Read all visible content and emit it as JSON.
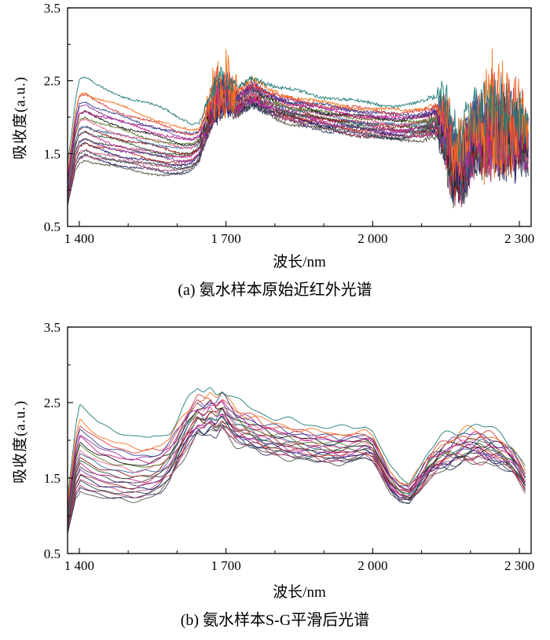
{
  "figure": {
    "background": "#ffffff"
  },
  "chart_data": [
    {
      "id": "a",
      "type": "line",
      "caption": "(a) 氨水样本原始近红外光谱",
      "xlabel": "波长/nm",
      "ylabel": "吸收度(a.u.)",
      "xlim": [
        1376,
        2324
      ],
      "ylim": [
        0.5,
        3.5
      ],
      "x_end": 2318,
      "grid": false,
      "legend": "none",
      "xticks": [
        {
          "v": 1400,
          "label": "1 400"
        },
        {
          "v": 1700,
          "label": "1 700"
        },
        {
          "v": 2000,
          "label": "2 000"
        },
        {
          "v": 2300,
          "label": "2 300"
        }
      ],
      "xminor": [
        1500,
        1600,
        1800,
        1900,
        2100,
        2200
      ],
      "yticks": [
        {
          "v": 0.5,
          "label": "0.5"
        },
        {
          "v": 1.5,
          "label": "1.5"
        },
        {
          "v": 2.5,
          "label": "2.5"
        },
        {
          "v": 3.5,
          "label": "3.5"
        }
      ],
      "yminor": [
        1.0,
        2.0,
        3.0
      ],
      "base": {
        "x": [
          1376,
          1385,
          1392,
          1400,
          1412,
          1430,
          1460,
          1500,
          1540,
          1580,
          1610,
          1630,
          1645,
          1658,
          1668,
          1678,
          1690,
          1700,
          1712,
          1725,
          1738,
          1752,
          1766,
          1780,
          1800,
          1830,
          1860,
          1900,
          1940,
          1980,
          2020,
          2060,
          2100,
          2130,
          2145,
          2155,
          2165,
          2180,
          2195,
          2210,
          2230,
          2250,
          2270,
          2290,
          2305,
          2318
        ],
        "y": [
          1.0,
          1.35,
          1.65,
          1.82,
          1.86,
          1.8,
          1.74,
          1.67,
          1.61,
          1.55,
          1.52,
          1.53,
          1.6,
          1.85,
          2.05,
          2.18,
          2.28,
          2.3,
          2.22,
          2.18,
          2.25,
          2.32,
          2.28,
          2.22,
          2.16,
          2.1,
          2.06,
          2.0,
          1.96,
          1.92,
          1.89,
          1.87,
          1.9,
          1.95,
          1.9,
          1.6,
          1.35,
          1.3,
          1.55,
          1.75,
          1.72,
          1.78,
          1.8,
          1.76,
          1.7,
          1.6
        ]
      },
      "envelope": {
        "x": [
          1376,
          1400,
          1450,
          1520,
          1580,
          1620,
          1650,
          1680,
          1710,
          1760,
          1820,
          1900,
          2000,
          2080,
          2130,
          2160,
          2200,
          2250,
          2318
        ],
        "y": [
          0.5,
          1.0,
          0.92,
          0.82,
          0.75,
          0.62,
          0.45,
          0.38,
          0.34,
          0.35,
          0.36,
          0.4,
          0.42,
          0.42,
          0.44,
          0.5,
          0.52,
          0.5,
          0.45
        ]
      },
      "noise_amp": {
        "x": [
          1376,
          1640,
          1658,
          1670,
          1685,
          1700,
          1715,
          1730,
          1745,
          1765,
          1790,
          1850,
          2000,
          2100,
          2128,
          2140,
          2155,
          2175,
          2200,
          2230,
          2260,
          2290,
          2318
        ],
        "y": [
          0.012,
          0.015,
          0.04,
          0.1,
          0.16,
          0.14,
          0.09,
          0.05,
          0.055,
          0.05,
          0.03,
          0.022,
          0.02,
          0.022,
          0.05,
          0.25,
          0.45,
          0.42,
          0.38,
          0.42,
          0.45,
          0.4,
          0.3
        ]
      },
      "series": [
        {
          "color": "#1f7a78",
          "offset": 0.7,
          "spike": 1.2
        },
        {
          "color": "#f5731d",
          "offset": 0.5,
          "spike": 3.5
        },
        {
          "color": "#d94040",
          "offset": 0.43,
          "spike": 2.2
        },
        {
          "color": "#33418f",
          "offset": 0.37,
          "spike": 1.4
        },
        {
          "color": "#8b3a9e",
          "offset": 0.31,
          "spike": 1.0
        },
        {
          "color": "#c71585",
          "offset": 0.26,
          "spike": 1.6
        },
        {
          "color": "#1a1a1a",
          "offset": 0.2,
          "spike": 1.0
        },
        {
          "color": "#5c7d2e",
          "offset": 0.15,
          "spike": 1.0
        },
        {
          "color": "#e8638c",
          "offset": 0.1,
          "spike": 1.2
        },
        {
          "color": "#3a6ea5",
          "offset": 0.05,
          "spike": 1.0
        },
        {
          "color": "#8b1a1a",
          "offset": 0.0,
          "spike": 1.5
        },
        {
          "color": "#2e5d34",
          "offset": -0.05,
          "spike": 1.0
        },
        {
          "color": "#d02090",
          "offset": -0.09,
          "spike": 1.0
        },
        {
          "color": "#474747",
          "offset": -0.13,
          "spike": 1.0
        },
        {
          "color": "#7a3bb5",
          "offset": -0.17,
          "spike": 1.3
        },
        {
          "color": "#c0392b",
          "offset": -0.21,
          "spike": 1.0
        },
        {
          "color": "#1b1b66",
          "offset": -0.25,
          "spike": 1.8
        },
        {
          "color": "#c2527a",
          "offset": -0.29,
          "spike": 1.0
        },
        {
          "color": "#2f4f4f",
          "offset": -0.33,
          "spike": 1.0
        },
        {
          "color": "#9b3b66",
          "offset": -0.37,
          "spike": 1.0
        },
        {
          "color": "#343468",
          "offset": -0.41,
          "spike": 1.2
        },
        {
          "color": "#555544",
          "offset": -0.45,
          "spike": 1.0
        }
      ]
    },
    {
      "id": "b",
      "type": "line",
      "caption": "(b) 氨水样本S-G平滑后光谱",
      "xlabel": "波长/nm",
      "ylabel": "吸收度(a.u.)",
      "xlim": [
        1376,
        2324
      ],
      "ylim": [
        0.5,
        3.5
      ],
      "x_end": 2312,
      "grid": false,
      "legend": "none",
      "xticks": [
        {
          "v": 1400,
          "label": "1 400"
        },
        {
          "v": 1700,
          "label": "1 700"
        },
        {
          "v": 2000,
          "label": "2 000"
        },
        {
          "v": 2300,
          "label": "2 300"
        }
      ],
      "xminor": [
        1500,
        1600,
        1800,
        1900,
        2100,
        2200
      ],
      "yticks": [
        {
          "v": 0.5,
          "label": "0.5"
        },
        {
          "v": 1.5,
          "label": "1.5"
        },
        {
          "v": 2.5,
          "label": "2.5"
        },
        {
          "v": 3.5,
          "label": "3.5"
        }
      ],
      "yminor": [
        1.0,
        2.0,
        3.0
      ],
      "base": {
        "x": [
          1376,
          1385,
          1393,
          1402,
          1415,
          1440,
          1470,
          1510,
          1545,
          1565,
          1585,
          1605,
          1625,
          1642,
          1655,
          1668,
          1680,
          1692,
          1705,
          1720,
          1738,
          1755,
          1775,
          1800,
          1830,
          1860,
          1895,
          1930,
          1960,
          1985,
          2000,
          2015,
          2035,
          2055,
          2075,
          2095,
          2115,
          2140,
          2165,
          2190,
          2215,
          2240,
          2265,
          2285,
          2300,
          2312
        ],
        "y": [
          0.95,
          1.3,
          1.62,
          1.78,
          1.72,
          1.63,
          1.58,
          1.53,
          1.55,
          1.6,
          1.72,
          1.95,
          2.18,
          2.32,
          2.28,
          2.35,
          2.3,
          2.38,
          2.28,
          2.18,
          2.14,
          2.1,
          2.04,
          2.0,
          1.96,
          1.93,
          1.9,
          1.88,
          1.9,
          1.93,
          1.88,
          1.7,
          1.45,
          1.32,
          1.28,
          1.45,
          1.65,
          1.78,
          1.85,
          1.9,
          1.92,
          1.88,
          1.82,
          1.72,
          1.58,
          1.45
        ]
      },
      "envelope": {
        "x": [
          1376,
          1400,
          1440,
          1500,
          1550,
          1600,
          1650,
          1700,
          1760,
          1850,
          1950,
          2000,
          2040,
          2080,
          2120,
          2180,
          2240,
          2312
        ],
        "y": [
          0.45,
          1.0,
          0.85,
          0.75,
          0.68,
          0.55,
          0.5,
          0.48,
          0.45,
          0.42,
          0.4,
          0.35,
          0.28,
          0.25,
          0.3,
          0.4,
          0.38,
          0.28
        ]
      },
      "wiggle_amp": {
        "x": [
          1376,
          1500,
          1560,
          1610,
          1660,
          1720,
          1780,
          1850,
          1930,
          1990,
          2040,
          2100,
          2160,
          2220,
          2280,
          2312
        ],
        "y": [
          0.2,
          0.35,
          0.5,
          0.9,
          1.1,
          0.9,
          0.7,
          0.55,
          0.5,
          0.35,
          0.3,
          0.8,
          1.1,
          1.2,
          0.7,
          0.4
        ]
      },
      "series": [
        {
          "color": "#1f7a78",
          "offset": 0.7
        },
        {
          "color": "#f5731d",
          "offset": 0.5
        },
        {
          "color": "#d94040",
          "offset": 0.43
        },
        {
          "color": "#33418f",
          "offset": 0.37
        },
        {
          "color": "#8b3a9e",
          "offset": 0.31
        },
        {
          "color": "#c71585",
          "offset": 0.26
        },
        {
          "color": "#1a1a1a",
          "offset": 0.2
        },
        {
          "color": "#5c7d2e",
          "offset": 0.15
        },
        {
          "color": "#e8638c",
          "offset": 0.1
        },
        {
          "color": "#3a6ea5",
          "offset": 0.05
        },
        {
          "color": "#8b1a1a",
          "offset": 0.0
        },
        {
          "color": "#2e5d34",
          "offset": -0.05
        },
        {
          "color": "#d02090",
          "offset": -0.09
        },
        {
          "color": "#474747",
          "offset": -0.13
        },
        {
          "color": "#7a3bb5",
          "offset": -0.17
        },
        {
          "color": "#c0392b",
          "offset": -0.21
        },
        {
          "color": "#1b1b66",
          "offset": -0.25
        },
        {
          "color": "#c2527a",
          "offset": -0.29
        },
        {
          "color": "#2f4f4f",
          "offset": -0.33
        },
        {
          "color": "#9b3b66",
          "offset": -0.37
        },
        {
          "color": "#343468",
          "offset": -0.41
        },
        {
          "color": "#555544",
          "offset": -0.45
        }
      ]
    }
  ]
}
